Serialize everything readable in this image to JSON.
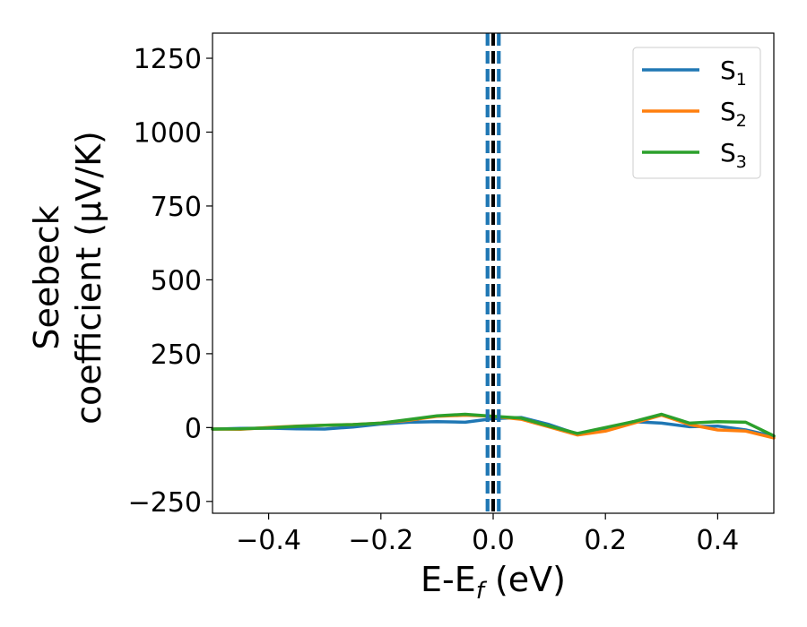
{
  "chart_data": {
    "type": "line",
    "xlabel": {
      "main": "E-E",
      "sub": "f",
      "unit": " (eV)"
    },
    "ylabel": {
      "line1": "Seebeck",
      "line2": "coefficient  (μV/K)"
    },
    "xlim": [
      -0.5,
      0.5
    ],
    "ylim": [
      -290,
      1335
    ],
    "xticks": [
      -0.4,
      -0.2,
      0.0,
      0.2,
      0.4
    ],
    "xtick_labels": [
      "−0.4",
      "−0.2",
      "0.0",
      "0.2",
      "0.4"
    ],
    "yticks": [
      -250,
      0,
      250,
      500,
      750,
      1000,
      1250
    ],
    "ytick_labels": [
      "−250",
      "0",
      "250",
      "500",
      "750",
      "1000",
      "1250"
    ],
    "grid": false,
    "legend_position": "top-right",
    "vertical_lines": [
      {
        "x": 0.0,
        "style": "dashed",
        "color": "#000000"
      },
      {
        "x": -0.01,
        "style": "dashed",
        "color": "#1f77b4"
      },
      {
        "x": 0.01,
        "style": "dashed",
        "color": "#1f77b4"
      }
    ],
    "series": [
      {
        "name": "S",
        "sub": "1",
        "color": "#1f77b4",
        "x": [
          -0.5,
          -0.45,
          -0.4,
          -0.35,
          -0.3,
          -0.25,
          -0.2,
          -0.15,
          -0.1,
          -0.05,
          0.0,
          0.05,
          0.1,
          0.15,
          0.2,
          0.25,
          0.3,
          0.35,
          0.4,
          0.45,
          0.5
        ],
        "y": [
          -5,
          -3,
          -2,
          -4,
          -5,
          2,
          12,
          18,
          20,
          18,
          30,
          34,
          10,
          -22,
          -5,
          20,
          15,
          3,
          5,
          -8,
          -30
        ]
      },
      {
        "name": "S",
        "sub": "2",
        "color": "#ff7f0e",
        "x": [
          -0.5,
          -0.45,
          -0.4,
          -0.35,
          -0.3,
          -0.25,
          -0.2,
          -0.15,
          -0.1,
          -0.05,
          0.0,
          0.05,
          0.1,
          0.15,
          0.2,
          0.25,
          0.3,
          0.35,
          0.4,
          0.45,
          0.5
        ],
        "y": [
          -5,
          -6,
          0,
          5,
          8,
          10,
          15,
          25,
          38,
          42,
          38,
          28,
          2,
          -25,
          -12,
          15,
          42,
          10,
          -8,
          -12,
          -35
        ]
      },
      {
        "name": "S",
        "sub": "3",
        "color": "#2ca02c",
        "x": [
          -0.5,
          -0.45,
          -0.4,
          -0.35,
          -0.3,
          -0.25,
          -0.2,
          -0.15,
          -0.1,
          -0.05,
          0.0,
          0.05,
          0.1,
          0.15,
          0.2,
          0.25,
          0.3,
          0.35,
          0.4,
          0.45,
          0.5
        ],
        "y": [
          -5,
          -4,
          -1,
          4,
          8,
          10,
          15,
          27,
          40,
          45,
          38,
          32,
          5,
          -20,
          0,
          20,
          45,
          15,
          20,
          18,
          -28
        ]
      }
    ]
  }
}
